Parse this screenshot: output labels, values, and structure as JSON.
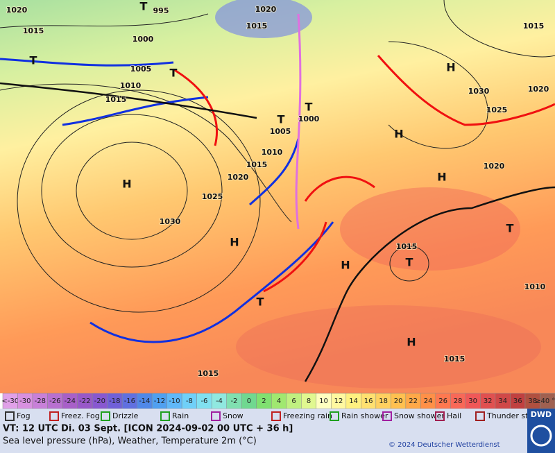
{
  "map": {
    "isobar_labels": [
      "1020",
      "995",
      "1020",
      "1015",
      "1015",
      "1015",
      "1000",
      "1005",
      "1010",
      "1015",
      "1030",
      "1025",
      "1020",
      "1005",
      "1000",
      "1010",
      "1015",
      "1020",
      "1025",
      "1030",
      "1020",
      "1015",
      "1010",
      "1015",
      "1015"
    ],
    "pressure_centers": [
      "T",
      "T",
      "T",
      "T",
      "T",
      "T",
      "T",
      "T",
      "H",
      "H",
      "H",
      "H",
      "H",
      "H",
      "H"
    ]
  },
  "colorbar": {
    "labels": [
      "<-30",
      -30,
      -28,
      -26,
      -24,
      -22,
      -20,
      -18,
      -16,
      -14,
      -12,
      -10,
      -8,
      -6,
      -4,
      -2,
      0,
      2,
      4,
      6,
      8,
      10,
      12,
      14,
      16,
      18,
      20,
      22,
      24,
      26,
      28,
      30,
      32,
      34,
      36,
      38,
      "≥40 °C"
    ],
    "colors": [
      "#e0a0e8",
      "#d890e0",
      "#c880d8",
      "#b870d0",
      "#a860c8",
      "#9858c8",
      "#8858d0",
      "#7060d8",
      "#6070e0",
      "#5088e8",
      "#50a0f0",
      "#60b8f8",
      "#70d0f8",
      "#80e0f0",
      "#90e8e0",
      "#80e0b0",
      "#70d890",
      "#80e070",
      "#a0e870",
      "#c0f080",
      "#e0f890",
      "#ffffc0",
      "#fff8a0",
      "#fff080",
      "#ffe070",
      "#ffd060",
      "#ffc050",
      "#ffa848",
      "#ff9048",
      "#ff7850",
      "#f86858",
      "#f05858",
      "#e05050",
      "#d04848",
      "#c04040",
      "#b05040",
      "#a06050"
    ]
  },
  "legend": [
    "Fog",
    "Freez. Fog",
    "Drizzle",
    "Rain",
    "Snow",
    "Freezing rain",
    "Rain shower",
    "Snow shower",
    "Hail",
    "Thunder storm"
  ],
  "footer": {
    "valid_time": "VT: 12 UTC Di.  03 Sept. [ICON 2024-09-02  00 UTC + 36 h]",
    "description": "Sea level pressure (hPa), Weather, Temperature 2m (°C)",
    "copyright": "© 2024 Deutscher Wetterdienst",
    "logo": "DWD"
  }
}
